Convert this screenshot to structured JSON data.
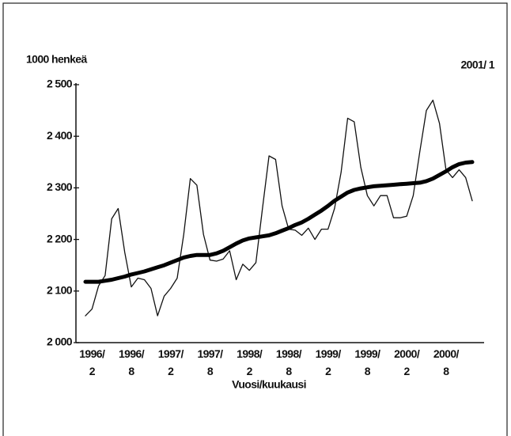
{
  "chart_data": {
    "type": "line",
    "y_label": "1000 henkeä",
    "period": "2001/ 1",
    "x_label": "Vuosi/kuukausi",
    "categories": [
      null,
      "1996/\n2",
      null,
      null,
      null,
      null,
      null,
      "1996/\n8",
      null,
      null,
      null,
      null,
      null,
      "1997/\n2",
      null,
      null,
      null,
      null,
      null,
      "1997/\n8",
      null,
      null,
      null,
      null,
      null,
      "1998/\n2",
      null,
      null,
      null,
      null,
      null,
      "1998/\n8",
      null,
      null,
      null,
      null,
      null,
      "1999/\n2",
      null,
      null,
      null,
      null,
      null,
      "1999/\n8",
      null,
      null,
      null,
      null,
      null,
      "2000/\n2",
      null,
      null,
      null,
      null,
      null,
      "2000/\n8",
      null,
      null,
      null,
      null
    ],
    "series": [
      {
        "color": "#111111",
        "width": 1.3,
        "values": [
          2052,
          2065,
          2110,
          2130,
          2240,
          2260,
          2175,
          2108,
          2125,
          2122,
          2105,
          2052,
          2090,
          2105,
          2125,
          2210,
          2318,
          2305,
          2210,
          2160,
          2158,
          2162,
          2178,
          2122,
          2152,
          2140,
          2155,
          2260,
          2362,
          2355,
          2265,
          2220,
          2218,
          2208,
          2222,
          2200,
          2220,
          2220,
          2260,
          2330,
          2435,
          2428,
          2340,
          2285,
          2265,
          2285,
          2285,
          2242,
          2242,
          2245,
          2285,
          2370,
          2450,
          2470,
          2425,
          2335,
          2320,
          2335,
          2320,
          2275
        ]
      },
      {
        "color": "#000000",
        "width": 5,
        "values": [
          2118,
          2118,
          2118,
          2120,
          2122,
          2125,
          2128,
          2132,
          2135,
          2138,
          2142,
          2146,
          2150,
          2155,
          2160,
          2165,
          2168,
          2170,
          2170,
          2170,
          2173,
          2178,
          2185,
          2192,
          2198,
          2202,
          2204,
          2206,
          2208,
          2212,
          2217,
          2222,
          2228,
          2233,
          2240,
          2248,
          2256,
          2265,
          2275,
          2283,
          2291,
          2296,
          2299,
          2301,
          2303,
          2304,
          2305,
          2306,
          2307,
          2308,
          2309,
          2310,
          2313,
          2318,
          2325,
          2332,
          2340,
          2346,
          2349,
          2350
        ]
      }
    ],
    "ylim": [
      2000,
      2500
    ],
    "yticks": [
      {
        "value": 2000,
        "label": "2 000"
      },
      {
        "value": 2100,
        "label": "2 100"
      },
      {
        "value": 2200,
        "label": "2 200"
      },
      {
        "value": 2300,
        "label": "2 300"
      },
      {
        "value": 2400,
        "label": "2 400"
      },
      {
        "value": 2500,
        "label": "2 500"
      }
    ],
    "grid": false
  }
}
